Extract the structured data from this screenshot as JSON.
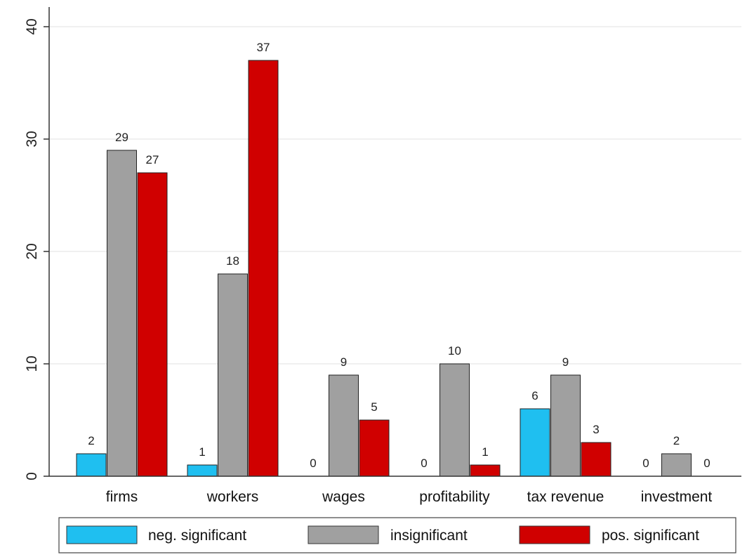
{
  "chart_data": {
    "type": "bar",
    "categories": [
      "firms",
      "workers",
      "wages",
      "profitability",
      "tax revenue",
      "investment"
    ],
    "series": [
      {
        "name": "neg. significant",
        "color": "#1fbff0",
        "values": [
          2,
          1,
          0,
          0,
          6,
          0
        ]
      },
      {
        "name": "insignificant",
        "color": "#a0a0a0",
        "values": [
          29,
          18,
          9,
          10,
          9,
          2
        ]
      },
      {
        "name": "pos. significant",
        "color": "#d00000",
        "values": [
          27,
          37,
          5,
          1,
          3,
          0
        ]
      }
    ],
    "ylim": [
      0,
      40
    ],
    "yticks": [
      0,
      10,
      20,
      30,
      40
    ],
    "grid": true,
    "legend_position": "bottom",
    "xlabel": "",
    "ylabel": "",
    "title": ""
  }
}
